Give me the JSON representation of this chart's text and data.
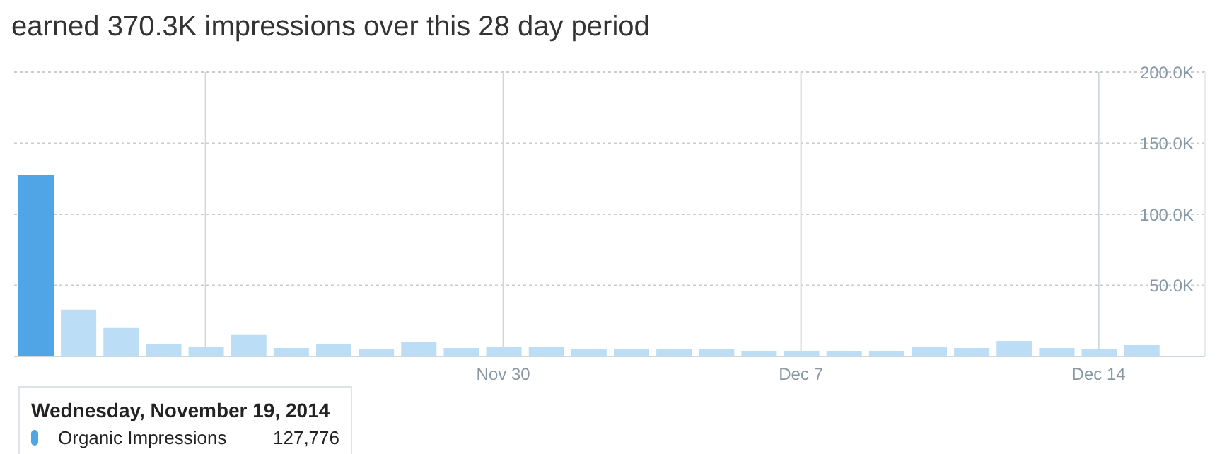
{
  "chart_data": {
    "type": "bar",
    "title": "earned 370.3K impressions over this 28 day period",
    "x": [
      "2014-11-19",
      "2014-11-20",
      "2014-11-21",
      "2014-11-22",
      "2014-11-23",
      "2014-11-24",
      "2014-11-25",
      "2014-11-26",
      "2014-11-27",
      "2014-11-28",
      "2014-11-29",
      "2014-11-30",
      "2014-12-01",
      "2014-12-02",
      "2014-12-03",
      "2014-12-04",
      "2014-12-05",
      "2014-12-06",
      "2014-12-07",
      "2014-12-08",
      "2014-12-09",
      "2014-12-10",
      "2014-12-11",
      "2014-12-12",
      "2014-12-13",
      "2014-12-14",
      "2014-12-15"
    ],
    "values": [
      127776,
      33000,
      20000,
      9000,
      7000,
      15000,
      6000,
      9000,
      5000,
      10000,
      6000,
      7000,
      7000,
      5000,
      5000,
      5000,
      5000,
      4000,
      4000,
      4000,
      4000,
      7000,
      6000,
      11000,
      6000,
      5000,
      8000
    ],
    "colors": [
      "#4fa5e6",
      "#bbdef6",
      "#bbdef6",
      "#bbdef6",
      "#bbdef6",
      "#bbdef6",
      "#bbdef6",
      "#bbdef6",
      "#bbdef6",
      "#bbdef6",
      "#bbdef6",
      "#bbdef6",
      "#bbdef6",
      "#bbdef6",
      "#bbdef6",
      "#bbdef6",
      "#bbdef6",
      "#bbdef6",
      "#bbdef6",
      "#bbdef6",
      "#bbdef6",
      "#bbdef6",
      "#bbdef6",
      "#bbdef6",
      "#bbdef6",
      "#bbdef6",
      "#bbdef6"
    ],
    "xlim": [
      "2014-11-18T12:00",
      "2014-12-16T12:00"
    ],
    "xticks": [
      {
        "value": "2014-11-23",
        "label": null
      },
      {
        "value": "2014-11-30",
        "label": "Nov 30"
      },
      {
        "value": "2014-12-07",
        "label": "Dec 7"
      },
      {
        "value": "2014-12-14",
        "label": "Dec 14"
      }
    ],
    "ylim": [
      0,
      200000
    ],
    "yticks": [
      {
        "value": 0,
        "label": null
      },
      {
        "value": 50000,
        "label": "50.0K"
      },
      {
        "value": 100000,
        "label": "100.0K"
      },
      {
        "value": 150000,
        "label": "150.0K"
      },
      {
        "value": 200000,
        "label": "200.0K"
      }
    ],
    "grid": true,
    "annotations": [
      "Wednesday, November 19, 2014",
      "Organic Impressions",
      "127,776"
    ]
  }
}
